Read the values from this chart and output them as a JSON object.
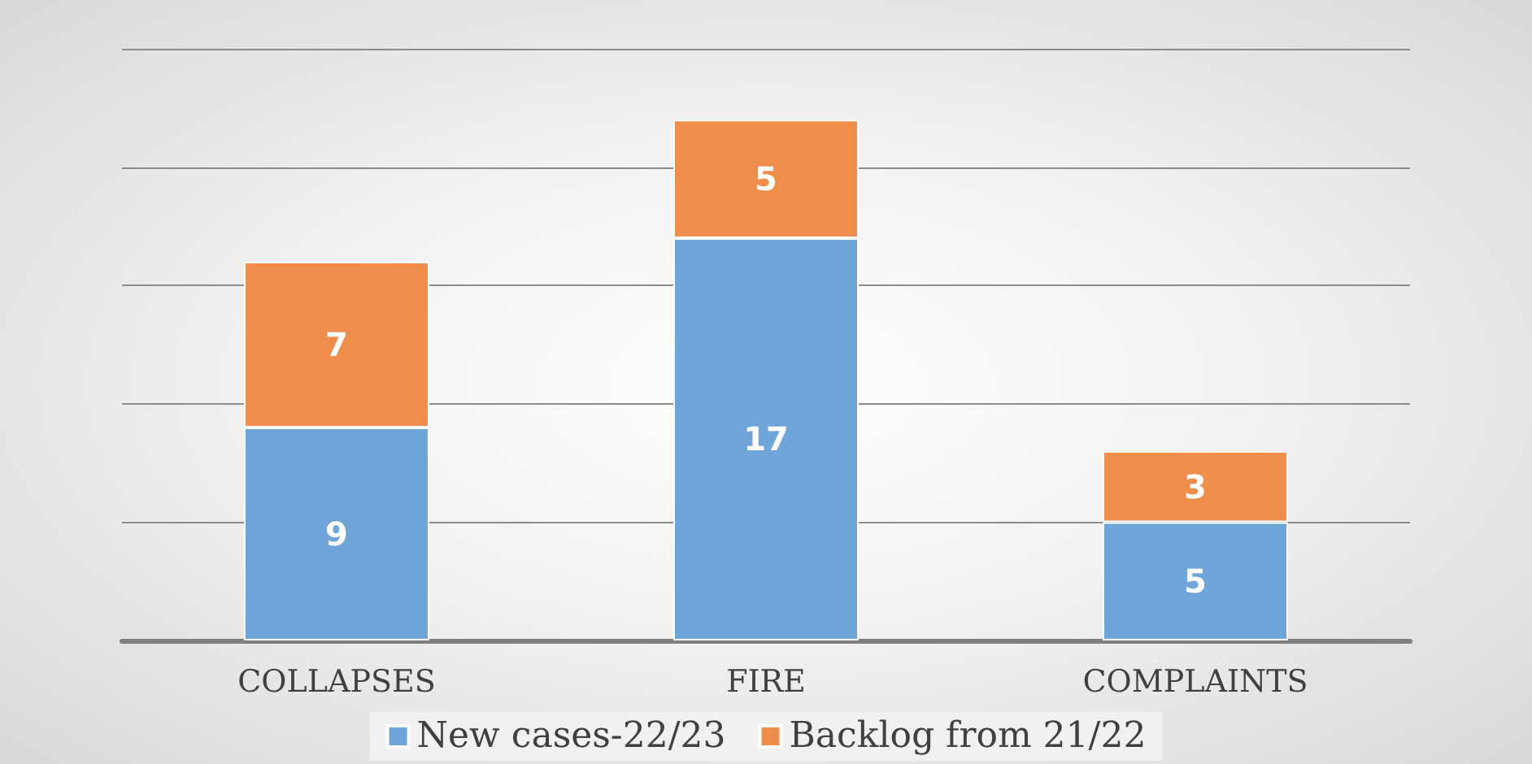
{
  "chart_data": {
    "type": "bar",
    "stacked": true,
    "data_labels": true,
    "grid": "y",
    "legend": "bottom",
    "categories": [
      "COLLAPSES",
      "FIRE",
      "COMPLAINTS"
    ],
    "series": [
      {
        "name": "New cases-22/23",
        "color": "#6fa5d9",
        "values": [
          9,
          17,
          5
        ]
      },
      {
        "name": "Backlog from 21/22",
        "color": "#ef8d4b",
        "values": [
          7,
          5,
          3
        ]
      }
    ]
  }
}
